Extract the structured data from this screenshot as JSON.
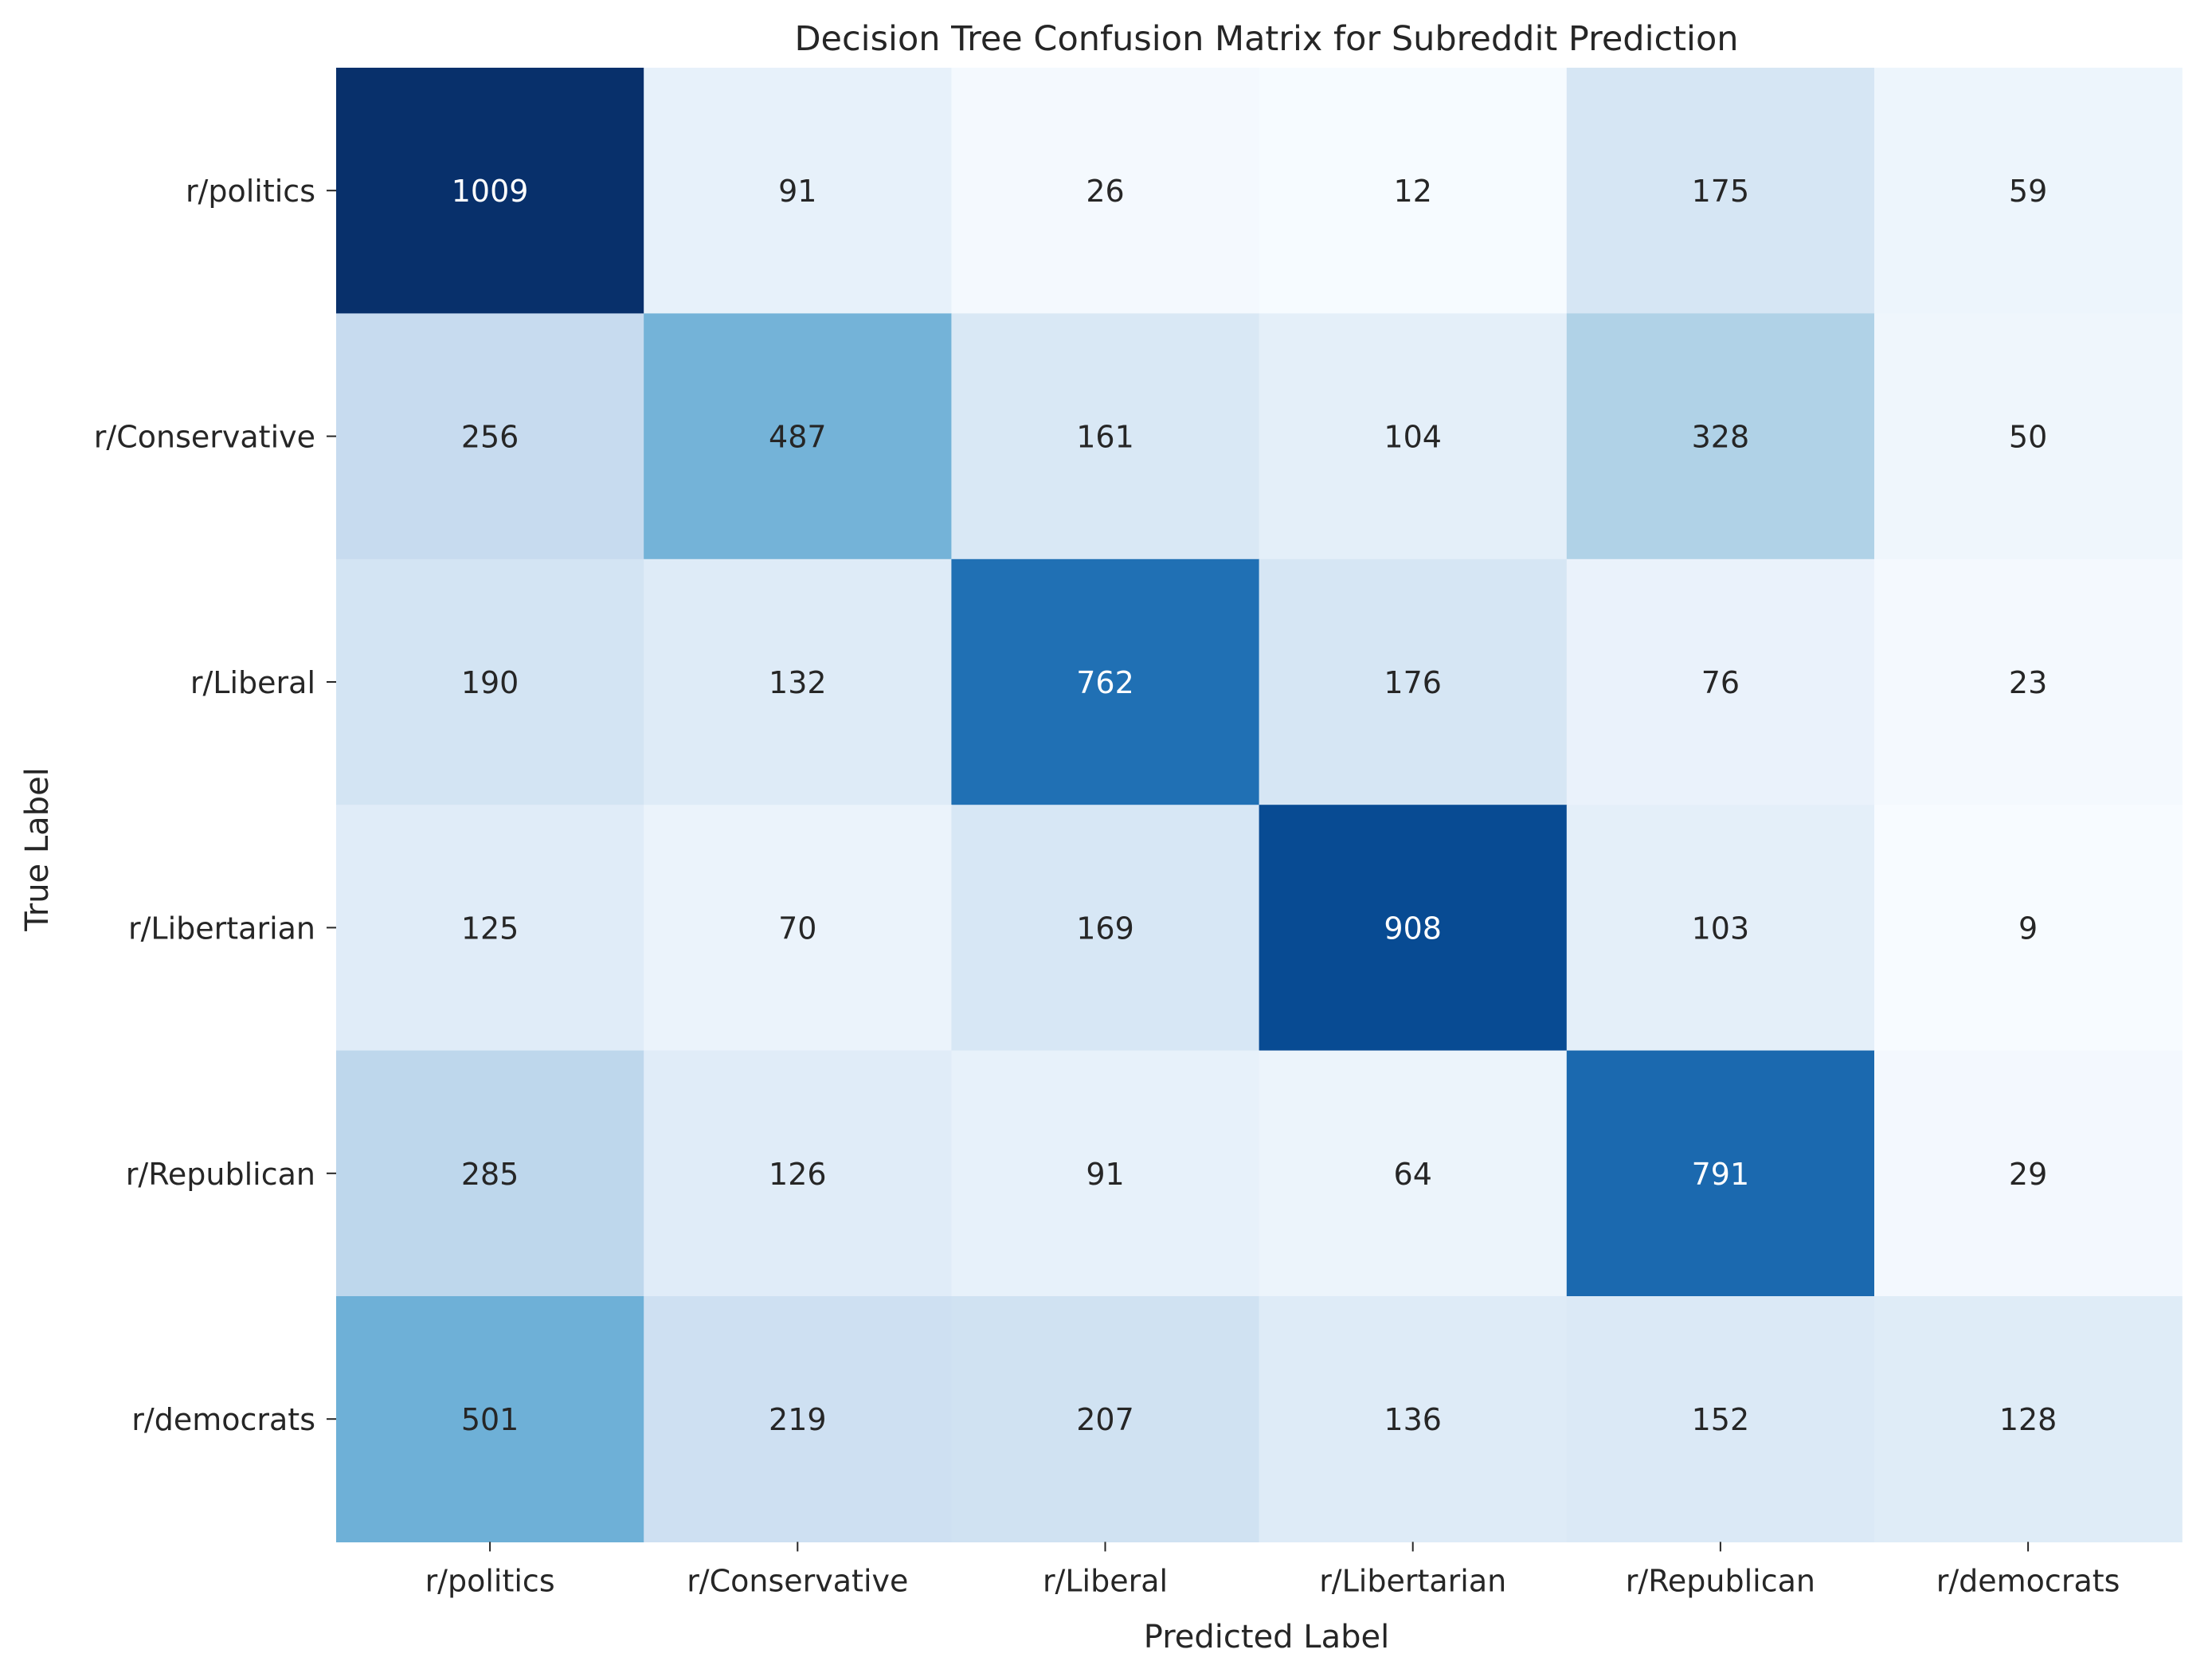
{
  "chart_data": {
    "type": "heatmap",
    "title": "Decision Tree Confusion Matrix for Subreddit Prediction",
    "xlabel": "Predicted Label",
    "ylabel": "True Label",
    "x_categories": [
      "r/politics",
      "r/Conservative",
      "r/Liberal",
      "r/Libertarian",
      "r/Republican",
      "r/democrats"
    ],
    "y_categories": [
      "r/politics",
      "r/Conservative",
      "r/Liberal",
      "r/Libertarian",
      "r/Republican",
      "r/democrats"
    ],
    "values": [
      [
        1009,
        91,
        26,
        12,
        175,
        59
      ],
      [
        256,
        487,
        161,
        104,
        328,
        50
      ],
      [
        190,
        132,
        762,
        176,
        76,
        23
      ],
      [
        125,
        70,
        169,
        908,
        103,
        9
      ],
      [
        285,
        126,
        91,
        64,
        791,
        29
      ],
      [
        501,
        219,
        207,
        136,
        152,
        128
      ]
    ],
    "colormap": "Blues",
    "vmin": 9,
    "vmax": 1009,
    "colorbar": false,
    "grid": false
  }
}
